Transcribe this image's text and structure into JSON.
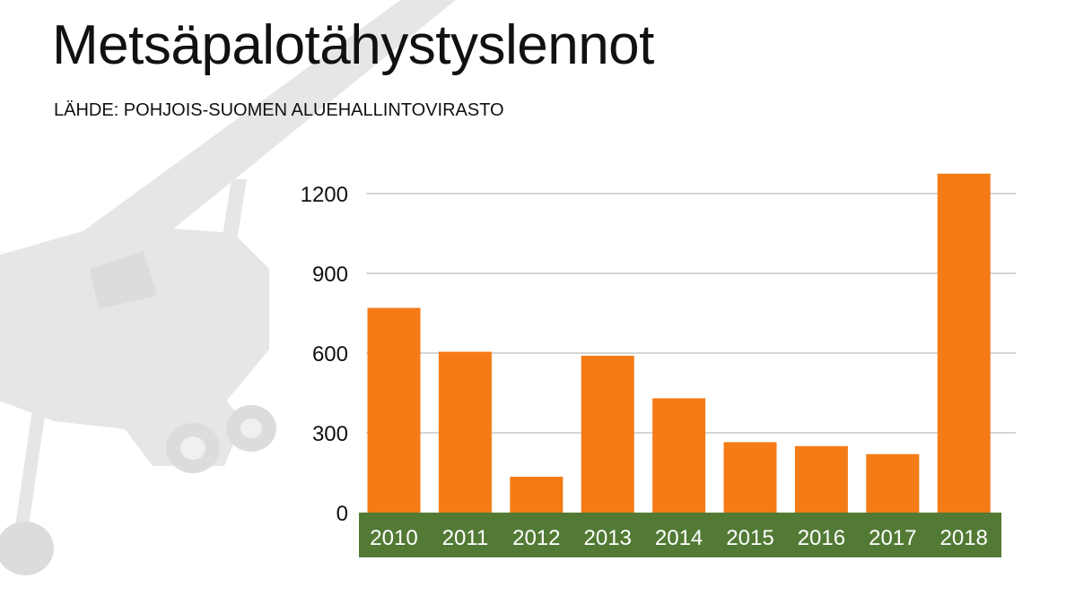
{
  "chart_data": {
    "type": "bar",
    "title": "Metsäpalotähystyslennot",
    "subtitle": "LÄHDE: POHJOIS-SUOMEN ALUEHALLINTOVIRASTO",
    "categories": [
      "2010",
      "2011",
      "2012",
      "2013",
      "2014",
      "2015",
      "2016",
      "2017",
      "2018"
    ],
    "values": [
      770,
      605,
      135,
      590,
      430,
      265,
      250,
      220,
      1275
    ],
    "yticks": [
      0,
      300,
      600,
      900,
      1200
    ],
    "ylim": [
      0,
      1200
    ],
    "xlabel": "",
    "ylabel": "",
    "grid": true,
    "legend": "none"
  },
  "colors": {
    "bar": "#f47b16",
    "axis_band": "#527a35",
    "grid": "#d6d6d6",
    "text": "#111111",
    "background_art": "#e4e4e4"
  },
  "background_icon": "airplane-silhouette"
}
